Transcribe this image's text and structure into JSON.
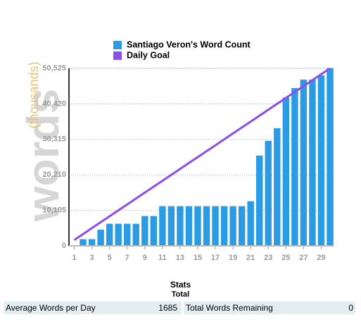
{
  "chart_data": {
    "type": "bar",
    "y_label": "words",
    "y_label_sub": "(thousands)",
    "x": [
      1,
      2,
      3,
      4,
      5,
      6,
      7,
      8,
      9,
      10,
      11,
      12,
      13,
      14,
      15,
      16,
      17,
      18,
      19,
      20,
      21,
      22,
      23,
      24,
      25,
      26,
      27,
      28,
      29,
      30
    ],
    "series": [
      {
        "name": "Santiago Veron's Word Count",
        "type": "bar",
        "color": "#2b9be3",
        "values": [
          0,
          1900,
          1900,
          4600,
          6300,
          6300,
          6300,
          6300,
          8500,
          8500,
          11300,
          11300,
          11300,
          11300,
          11300,
          11300,
          11300,
          11300,
          11300,
          11300,
          12700,
          25700,
          29900,
          33500,
          42200,
          44900,
          47300,
          47300,
          48500,
          50600
        ]
      },
      {
        "name": "Daily Goal",
        "type": "line",
        "color": "#8c4ee6",
        "values": [
          1684,
          3368,
          5053,
          6737,
          8421,
          10105,
          11790,
          13473,
          15158,
          16842,
          18526,
          20210,
          21895,
          23579,
          25263,
          26947,
          28631,
          30315,
          32000,
          33683,
          35368,
          37052,
          38736,
          40420,
          42104,
          43788,
          45473,
          47157,
          48841,
          50525
        ]
      }
    ],
    "xlim": [
      0.4,
      30.4
    ],
    "xticks": [
      1,
      3,
      5,
      7,
      9,
      11,
      13,
      15,
      17,
      19,
      21,
      23,
      25,
      27,
      29
    ],
    "ylim": [
      0,
      50525
    ],
    "yticks": [
      0,
      {
        "value": 10105,
        "label": "10,105"
      },
      {
        "value": 20210,
        "label": "20,210"
      },
      {
        "value": 30315,
        "label": "30,315"
      },
      {
        "value": 40420,
        "label": "40,420"
      },
      {
        "value": 50525,
        "label": "50,525"
      }
    ],
    "grid": true,
    "legend": "top"
  },
  "stats": {
    "title": "Stats",
    "subtitle": "Total",
    "rows": [
      [
        "Average Words per Day",
        1685,
        "Total Words Remaining",
        0
      ]
    ]
  }
}
